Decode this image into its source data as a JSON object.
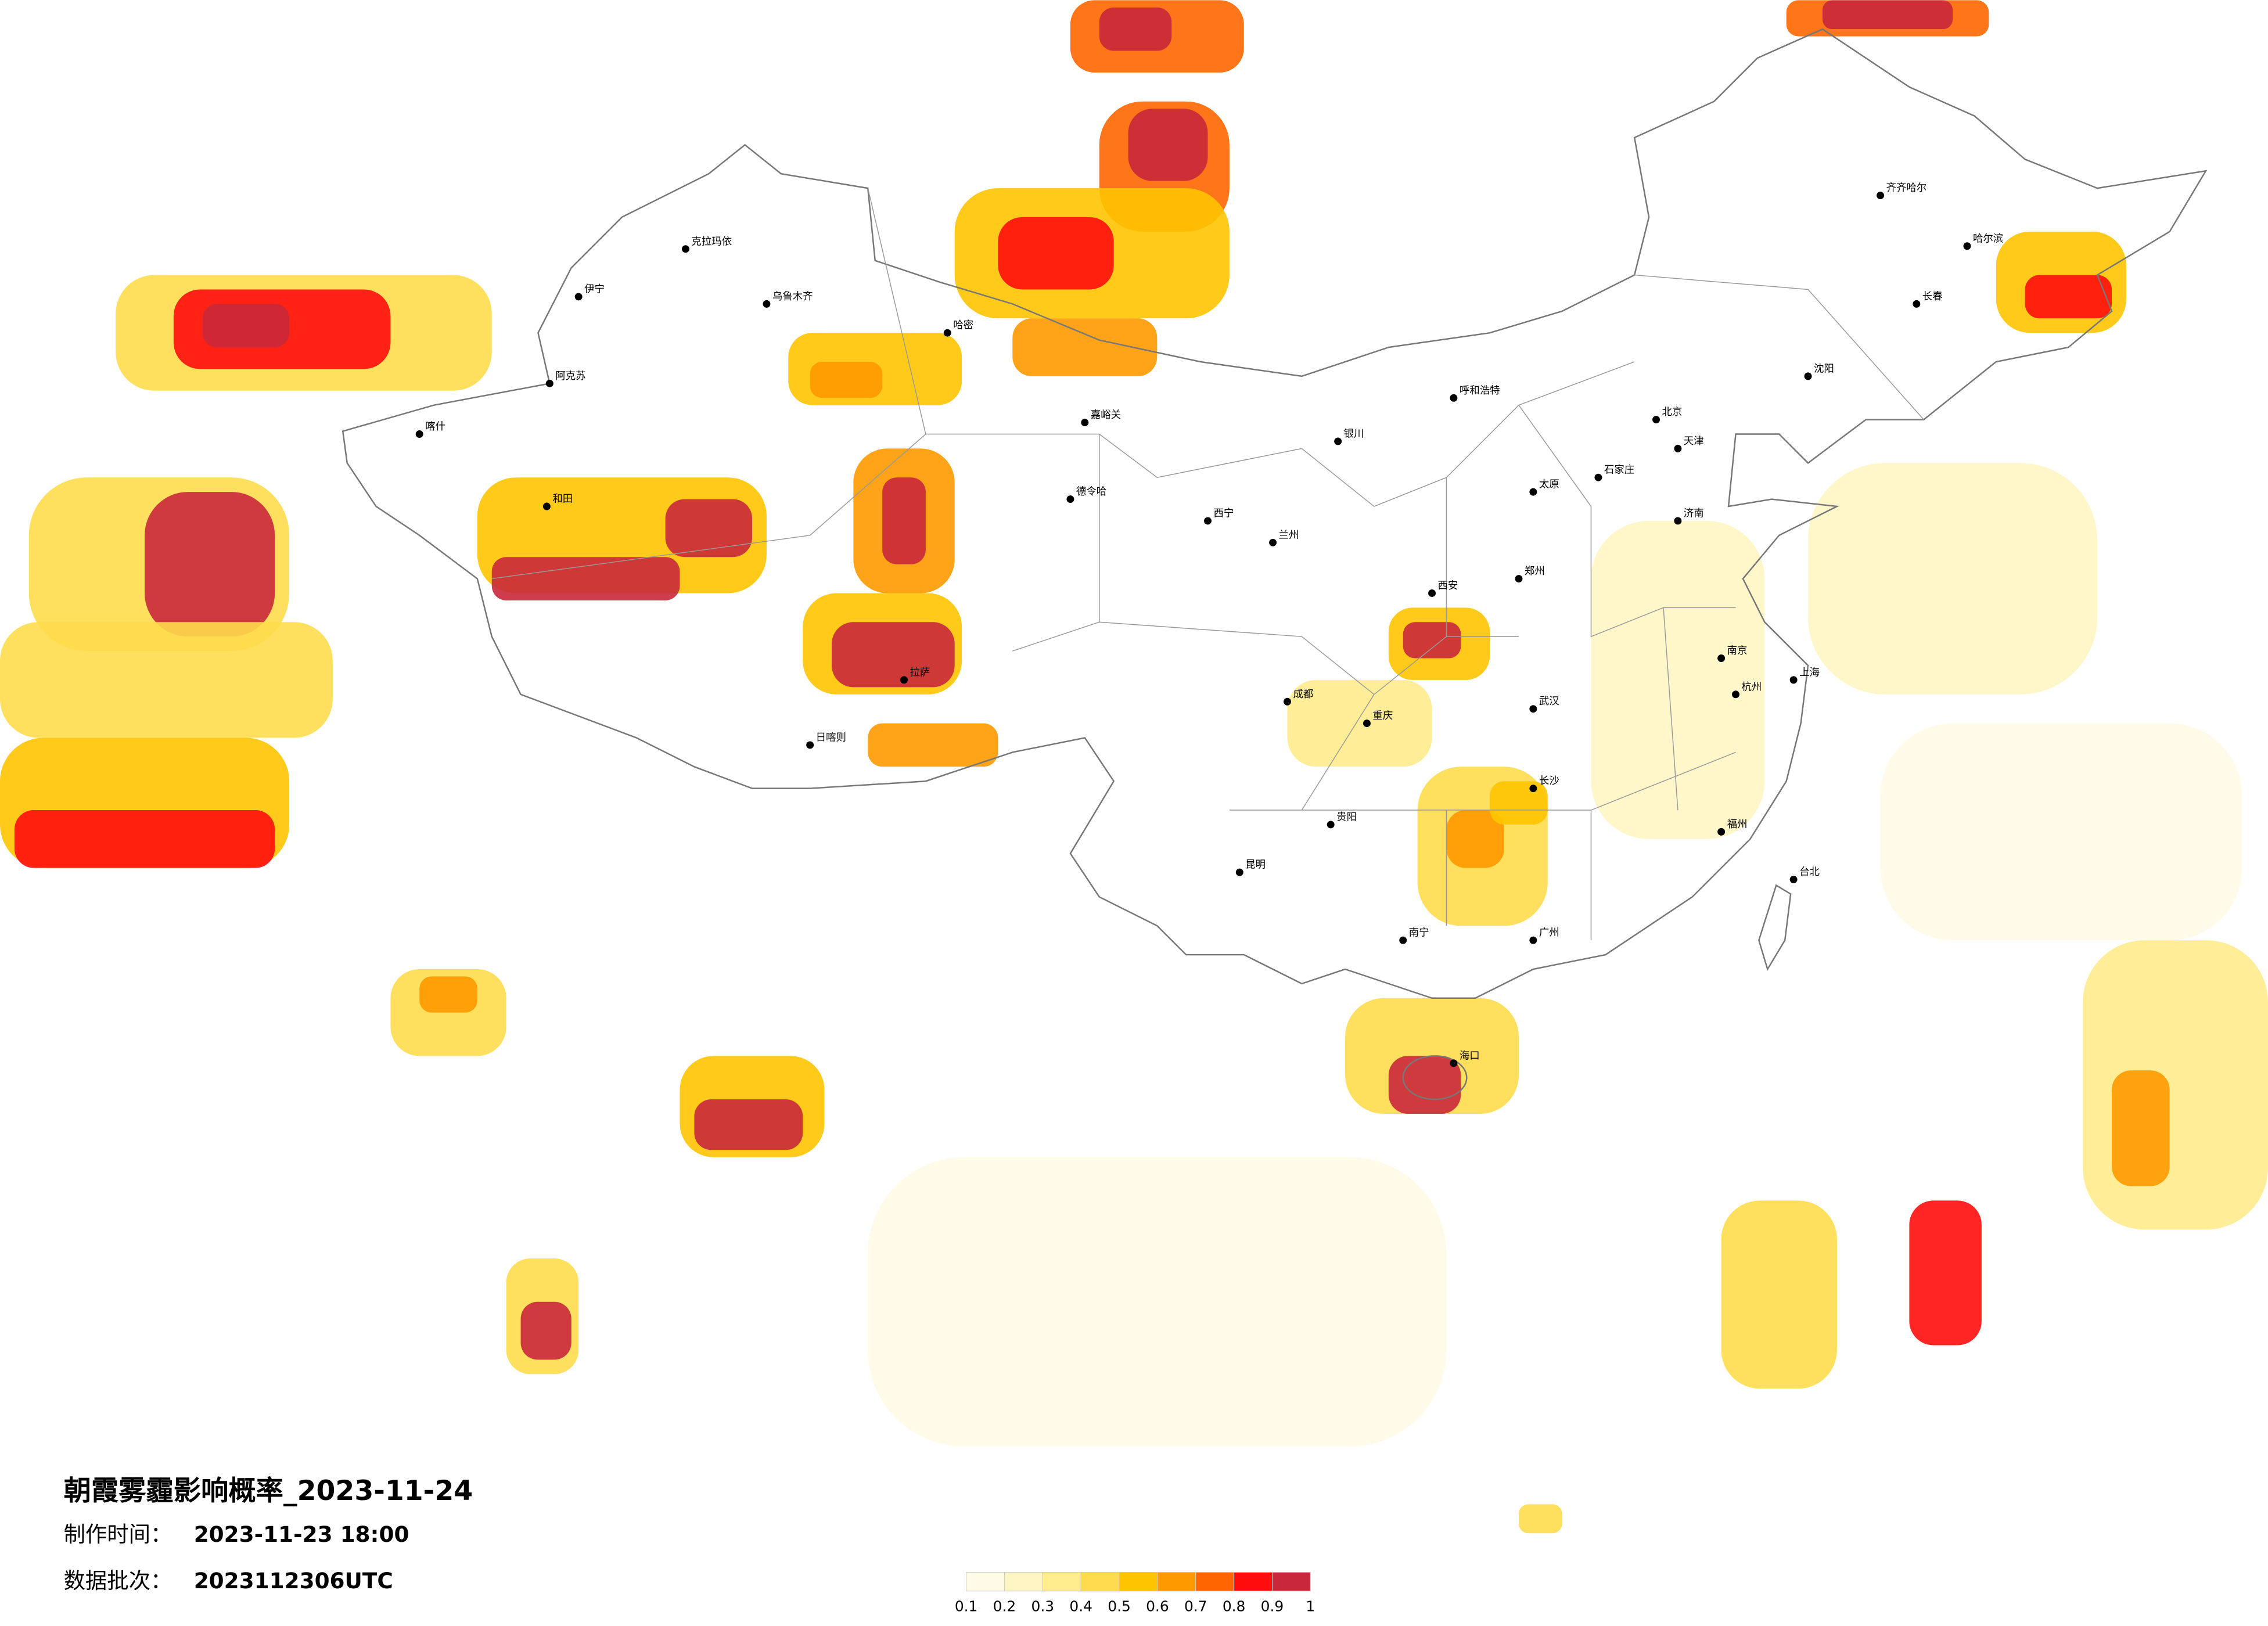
{
  "header": {
    "title": "朝霞雾霾影响概率_2023-11-24",
    "made_label": "制作时间：",
    "made_value": "2023-11-23 18:00",
    "batch_label": "数据批次：",
    "batch_value": "2023112306UTC"
  },
  "legend": {
    "ticks": [
      0.1,
      0.2,
      0.3,
      0.4,
      0.5,
      0.6,
      0.7,
      0.8,
      0.9,
      1
    ],
    "colors": [
      "#fffbe6",
      "#fff5c4",
      "#ffec8c",
      "#ffdb4d",
      "#ffc400",
      "#ff9900",
      "#ff6600",
      "#ff0d0d",
      "#c9283a"
    ]
  },
  "cities": [
    "克拉玛依",
    "乌鲁木齐",
    "伊宁",
    "喀什",
    "和田",
    "阿克苏",
    "哈密",
    "嘉峪关",
    "德令哈",
    "拉萨",
    "日喀则",
    "西宁",
    "兰州",
    "银川",
    "呼和浩特",
    "西安",
    "成都",
    "重庆",
    "昆明",
    "贵阳",
    "南宁",
    "广州",
    "福州",
    "杭州",
    "上海",
    "南京",
    "武汉",
    "长沙",
    "郑州",
    "济南",
    "石家庄",
    "太原",
    "北京",
    "天津",
    "沈阳",
    "长春",
    "哈尔滨",
    "齐齐哈尔",
    "台北",
    "海口"
  ]
}
